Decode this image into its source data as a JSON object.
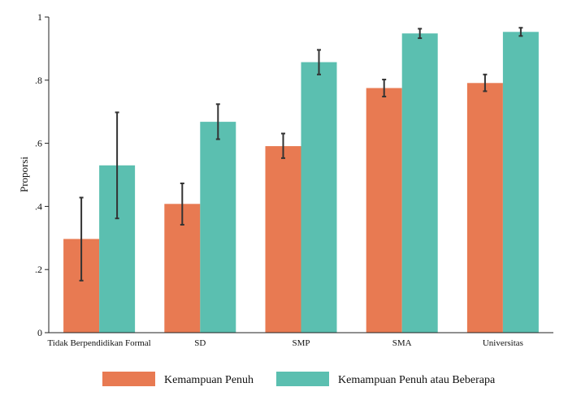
{
  "chart_data": {
    "type": "bar",
    "title": "",
    "xlabel": "",
    "ylabel": "Proporsi",
    "ylim": [
      0,
      1
    ],
    "yticks": [
      0,
      0.2,
      0.4,
      0.6,
      0.8,
      1
    ],
    "ytick_labels": [
      "0",
      ".2",
      ".4",
      ".6",
      ".8",
      "1"
    ],
    "grid": false,
    "legend_position": "bottom",
    "categories": [
      "Tidak Berpendidikan Formal",
      "SD",
      "SMP",
      "SMA",
      "Universitas"
    ],
    "series": [
      {
        "name": "Kemampuan Penuh",
        "color": "#E87A52",
        "values": [
          0.297,
          0.408,
          0.591,
          0.775,
          0.791
        ],
        "ci_low": [
          0.165,
          0.342,
          0.553,
          0.748,
          0.765
        ],
        "ci_high": [
          0.428,
          0.473,
          0.631,
          0.802,
          0.818
        ]
      },
      {
        "name": "Kemampuan Penuh atau Beberapa",
        "color": "#5BBFB0",
        "values": [
          0.53,
          0.668,
          0.857,
          0.948,
          0.953
        ],
        "ci_low": [
          0.362,
          0.613,
          0.818,
          0.933,
          0.94
        ],
        "ci_high": [
          0.698,
          0.724,
          0.896,
          0.963,
          0.966
        ]
      }
    ],
    "errorbar_color": "#333333"
  }
}
